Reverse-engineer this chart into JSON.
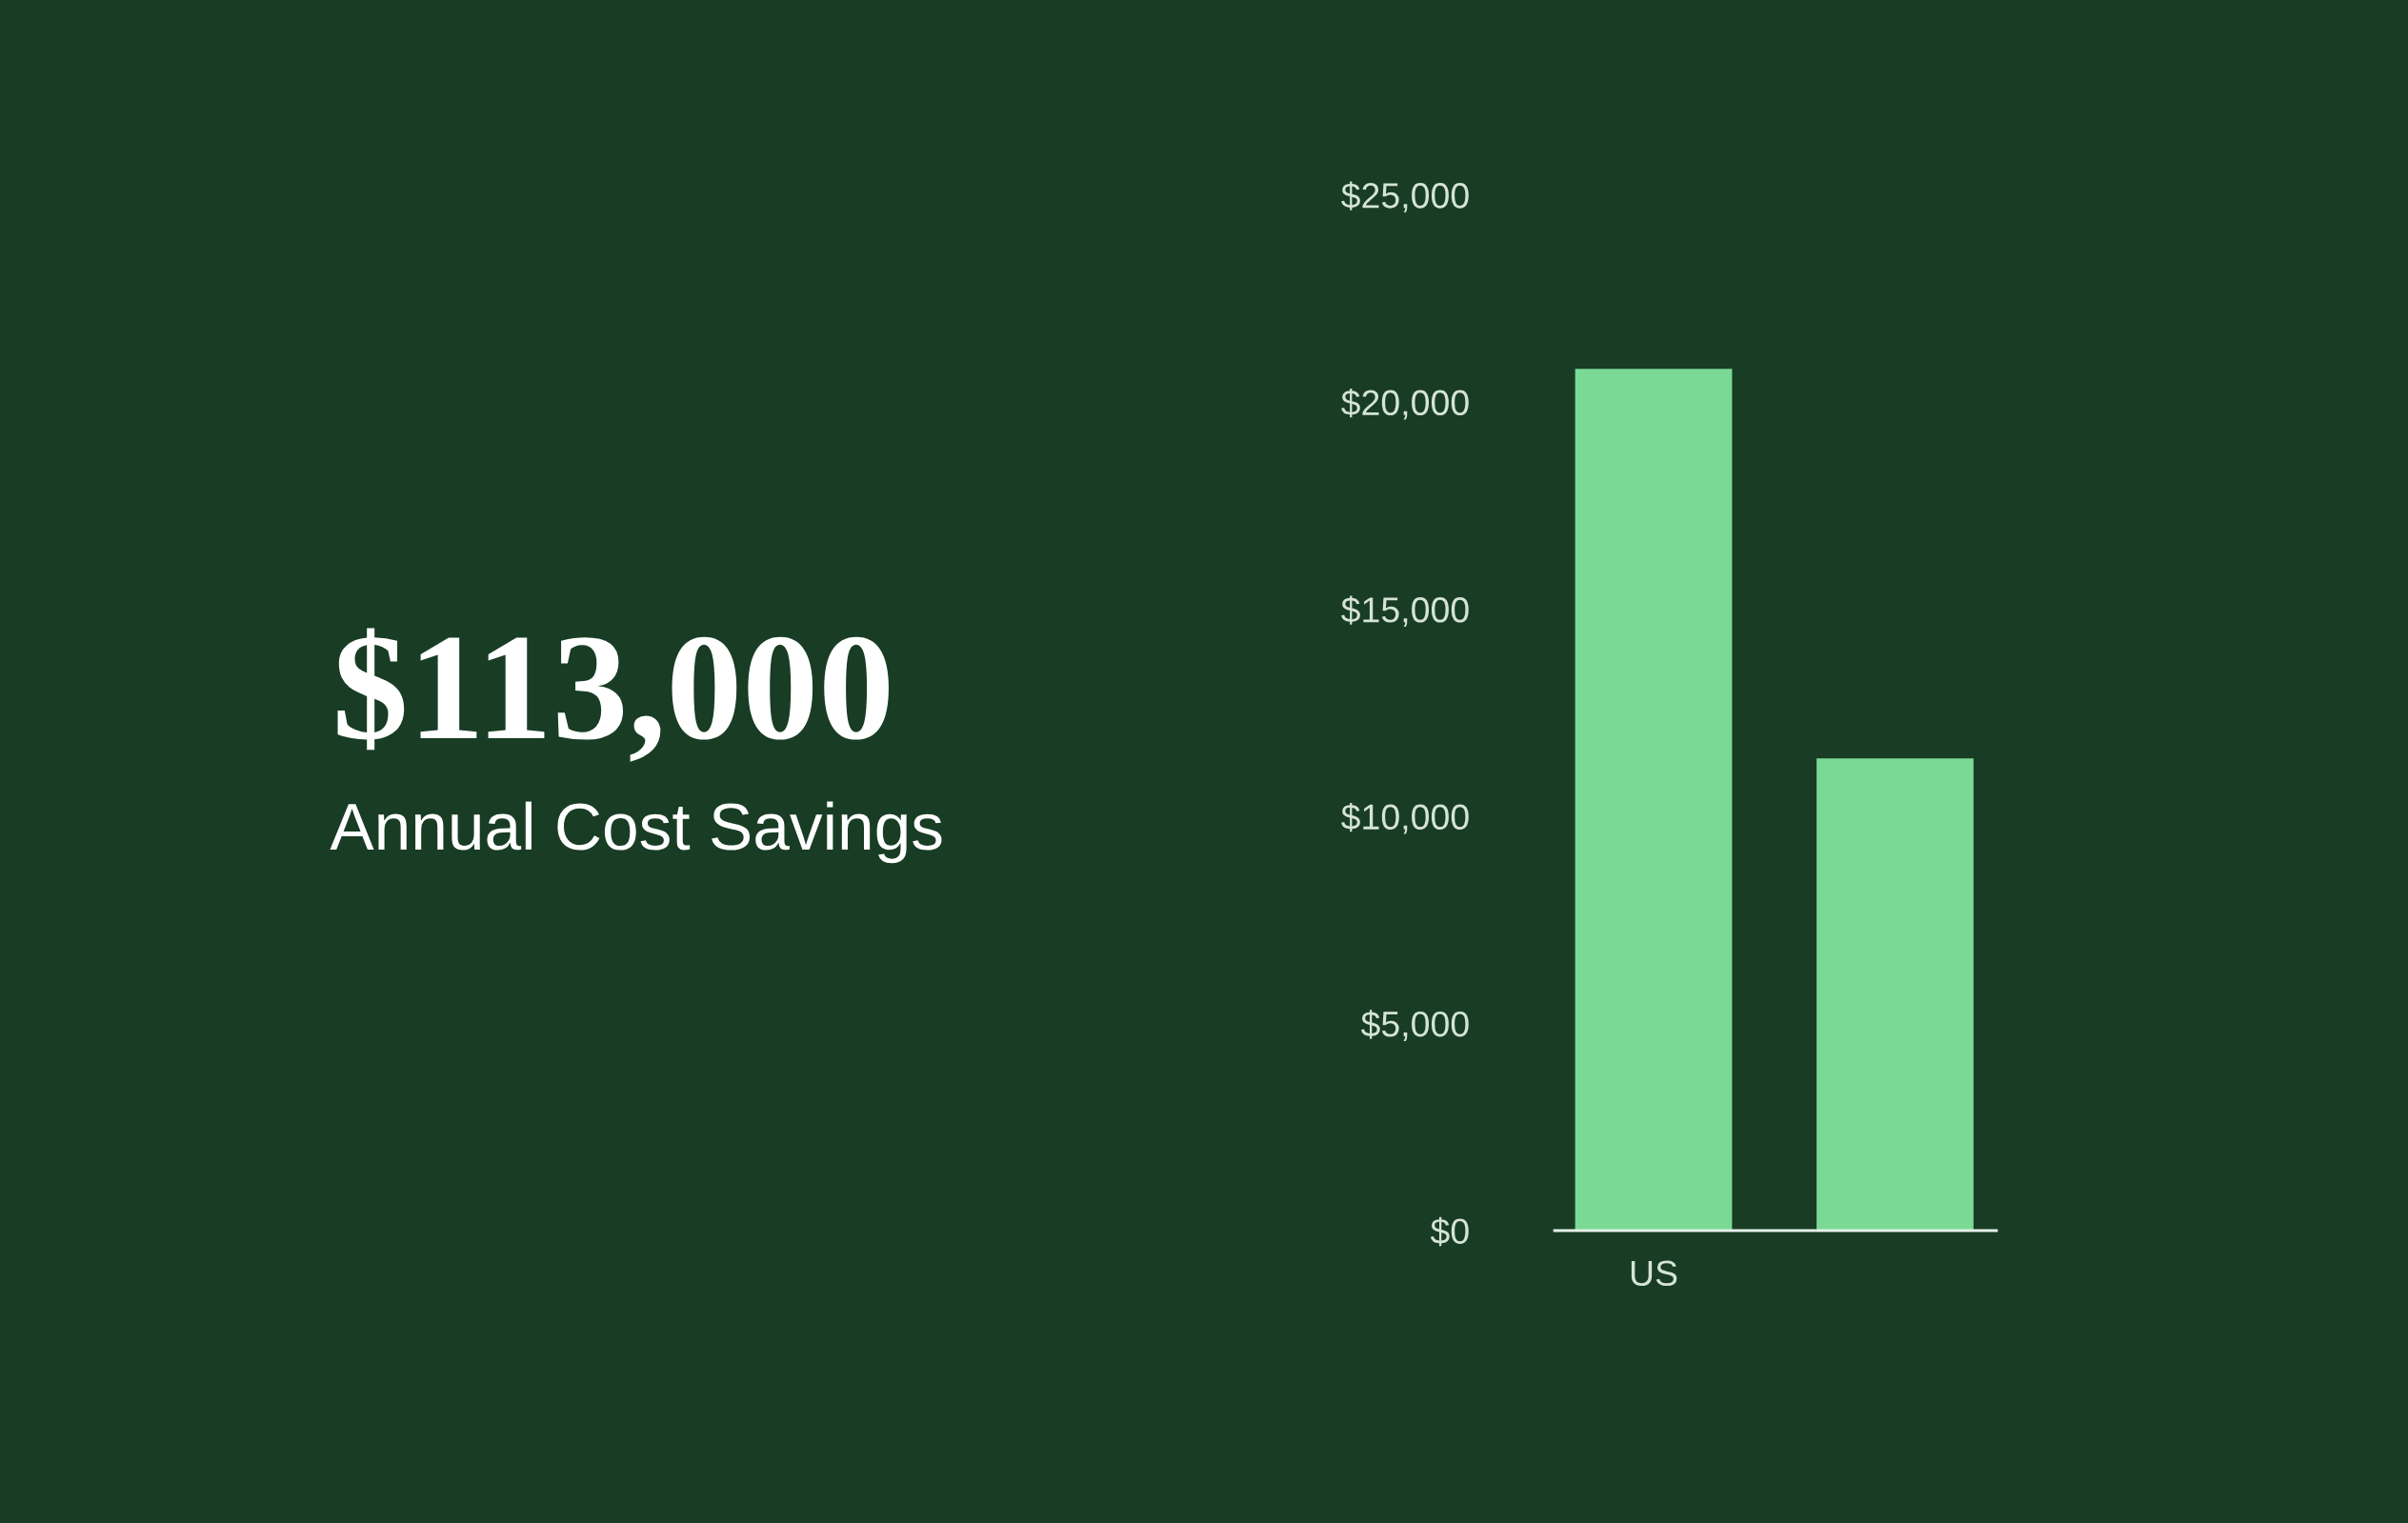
{
  "chart_data": {
    "type": "bar",
    "title": "$113,000",
    "subtitle": "Annual Cost Savings",
    "categories": [
      "US",
      null
    ],
    "values": [
      20800,
      11400
    ],
    "color": "#7ad994",
    "ylim": [
      0,
      25000
    ],
    "yticks": [
      {
        "value": 0,
        "label": "$0"
      },
      {
        "value": 5000,
        "label": "$5,000"
      },
      {
        "value": 10000,
        "label": "$10,000"
      },
      {
        "value": 15000,
        "label": "$15,000"
      },
      {
        "value": 20000,
        "label": "$20,000"
      },
      {
        "value": 25000,
        "label": "$25,000"
      }
    ]
  }
}
